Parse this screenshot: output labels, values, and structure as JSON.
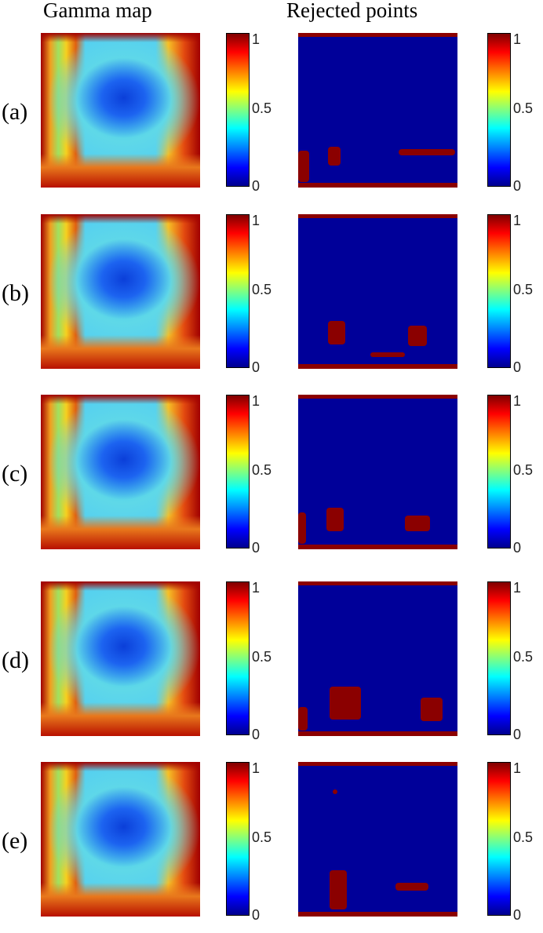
{
  "columns": {
    "gamma_title": "Gamma map",
    "rejected_title": "Rejected points"
  },
  "colorbar": {
    "top": "1",
    "mid": "0.5",
    "bottom": "0"
  },
  "rows": [
    {
      "label": "(a)"
    },
    {
      "label": "(b)"
    },
    {
      "label": "(c)"
    },
    {
      "label": "(d)"
    },
    {
      "label": "(e)"
    }
  ],
  "colors": {
    "rejected_bg": "#000099",
    "rejected_mark": "#8b0000"
  }
}
